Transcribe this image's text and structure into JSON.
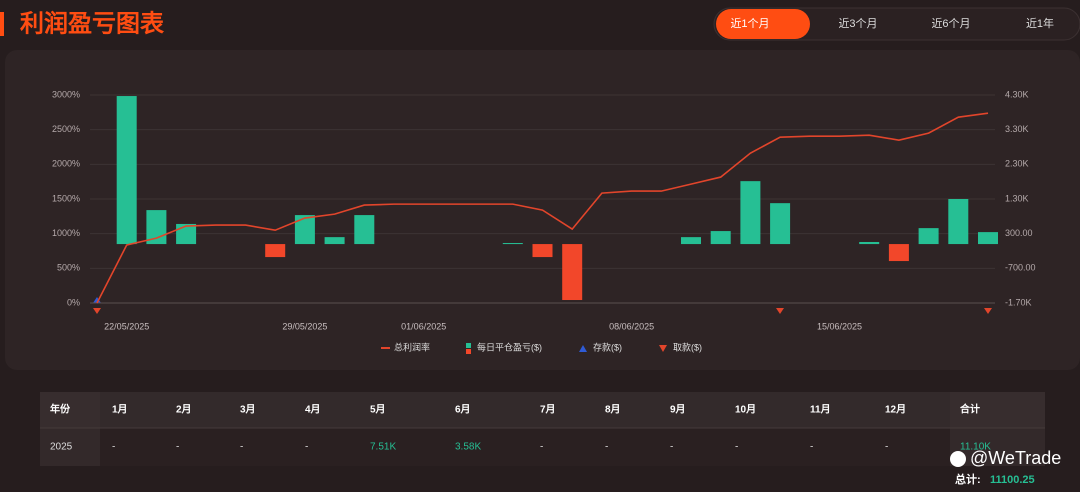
{
  "header": {
    "title": "利润盈亏图表"
  },
  "tabs": [
    "近1个月",
    "近3个月",
    "近6个月",
    "近1年"
  ],
  "active_tab": 0,
  "chart_data": {
    "type": "combo",
    "categories": [
      null,
      "22/05/2025",
      null,
      null,
      null,
      null,
      null,
      "29/05/2025",
      null,
      null,
      null,
      "01/06/2025",
      null,
      null,
      null,
      null,
      null,
      null,
      "08/06/2025",
      null,
      null,
      null,
      null,
      null,
      null,
      "15/06/2025",
      null,
      null,
      null,
      null,
      null
    ],
    "ylim": [
      0,
      3000
    ],
    "yticks": [
      {
        "value": 0,
        "label": "0%"
      },
      {
        "value": 500,
        "label": "500%"
      },
      {
        "value": 1000,
        "label": "1000%"
      },
      {
        "value": 1500,
        "label": "1500%"
      },
      {
        "value": 2000,
        "label": "2000%"
      },
      {
        "value": 2500,
        "label": "2500%"
      },
      {
        "value": 3000,
        "label": "3000%"
      }
    ],
    "y2lim": [
      -1700,
      4300
    ],
    "y2ticks": [
      {
        "value": -1700,
        "label": "-1.70K"
      },
      {
        "value": -700,
        "label": "-700.00"
      },
      {
        "value": 300,
        "label": "300.00"
      },
      {
        "value": 1300,
        "label": "1.30K"
      },
      {
        "value": 2300,
        "label": "2.30K"
      },
      {
        "value": 3300,
        "label": "3.30K"
      },
      {
        "value": 4300,
        "label": "4.30K"
      }
    ],
    "grid": true,
    "series": [
      {
        "name": "总利润率",
        "type": "line",
        "color": "#e2452b",
        "values": [
          0,
          836,
          936,
          1110,
          1124,
          1124,
          1050,
          1225,
          1282,
          1412,
          1426,
          1426,
          1426,
          1426,
          1426,
          1340,
          1066,
          1585,
          1614,
          1614,
          1715,
          1816,
          2161,
          2392,
          2406,
          2406,
          2420,
          2349,
          2450,
          2680,
          2738
        ]
      },
      {
        "name": "每日平仓盈亏($)",
        "type": "bar",
        "axis": "y2",
        "color": "#26bf94",
        "negative_color": "#f2472a",
        "values": [
          null,
          4270,
          980,
          580,
          null,
          null,
          -375,
          836,
          200,
          836,
          null,
          null,
          null,
          null,
          30,
          -375,
          -1614,
          null,
          null,
          null,
          200,
          375,
          1815,
          1180,
          null,
          null,
          60,
          -490,
          460,
          1300,
          345
        ]
      }
    ],
    "markers": [
      {
        "name": "存款($)",
        "color": "#2f5bd6"
      },
      {
        "name": "取款($)",
        "color": "#e2452b"
      }
    ]
  },
  "table": {
    "header": [
      "年份",
      "1月",
      "2月",
      "3月",
      "4月",
      "5月",
      "6月",
      "7月",
      "8月",
      "9月",
      "10月",
      "11月",
      "12月",
      "合计"
    ],
    "rows": [
      [
        "2025",
        "-",
        "-",
        "-",
        "-",
        "7.51K",
        "3.58K",
        "-",
        "-",
        "-",
        "-",
        "-",
        "-",
        "11.10K"
      ]
    ]
  },
  "footer": {
    "label": "总计:",
    "value": "11100.25"
  },
  "watermark": "@WeTrade"
}
